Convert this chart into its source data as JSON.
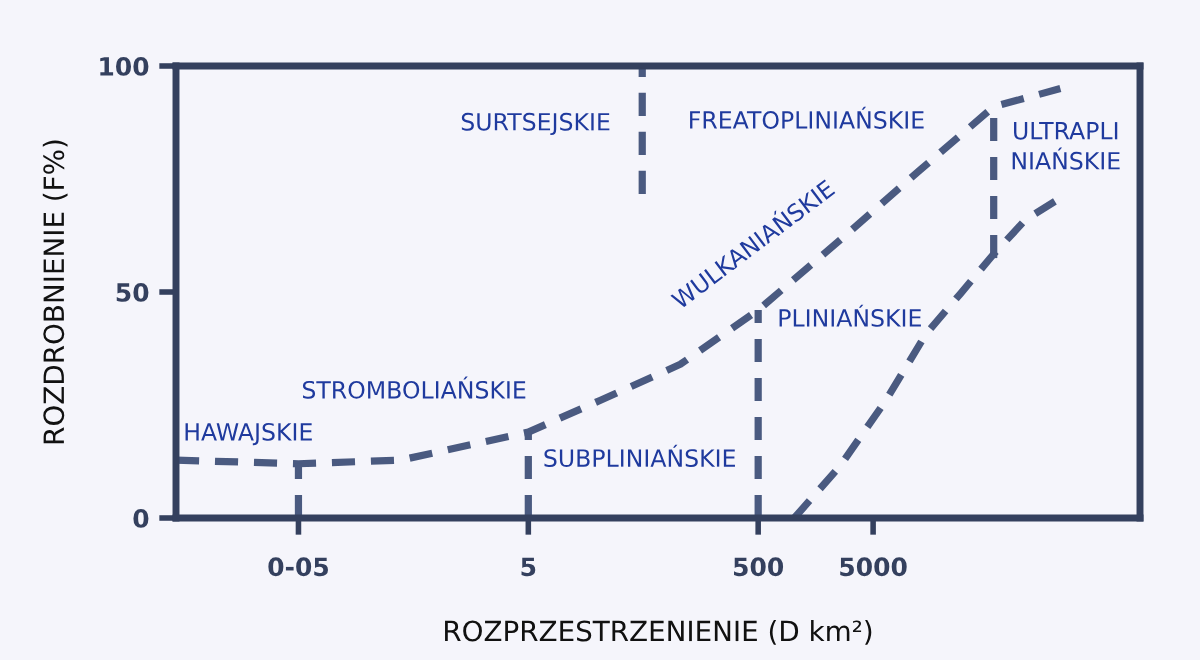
{
  "chart_data": {
    "type": "line",
    "xlabel": "ROZPRZESTRZENIENIE (D km²)",
    "ylabel": "ROZDROBNIENIE (F%)",
    "log": "x",
    "xlim": [
      0.0043,
      1050000
    ],
    "xticks": [
      {
        "value": 0.05,
        "label": "0-05"
      },
      5,
      500,
      5000
    ],
    "ylim": [
      0,
      100
    ],
    "yticks": [
      0,
      50,
      100
    ],
    "grid": false,
    "legend": false,
    "marker": "none",
    "line_style": "dashed",
    "series": [
      {
        "color": "#4a5a80",
        "x": [
          0.0043,
          0.05,
          0.385,
          5,
          21,
          105,
          500,
          2580,
          12800,
          56000,
          213000
        ],
        "values": [
          12.8,
          12,
          12.8,
          19,
          26,
          34,
          46,
          61.5,
          77,
          91,
          95
        ]
      },
      {
        "color": "#4a5a80",
        "x": [
          1030,
          2580,
          6450,
          14400,
          28700,
          56000,
          106000,
          213000
        ],
        "values": [
          0,
          11.5,
          26,
          40.7,
          49.6,
          58.4,
          66,
          70.8
        ]
      },
      {
        "color": "#4a5a80",
        "x": [
          0.05,
          0.05
        ],
        "values": [
          0,
          12
        ]
      },
      {
        "color": "#4a5a80",
        "x": [
          5,
          5
        ],
        "values": [
          0,
          19
        ]
      },
      {
        "color": "#4a5a80",
        "x": [
          500,
          500
        ],
        "values": [
          0,
          46
        ]
      },
      {
        "color": "#4a5a80",
        "x": [
          56000,
          56000
        ],
        "values": [
          57.5,
          92
        ]
      },
      {
        "color": "#4a5a80",
        "x": [
          49,
          49
        ],
        "values": [
          71.7,
          100
        ]
      }
    ],
    "annotations": [
      "HAWAJSKIE",
      "STROMBOLIAŃSKIE",
      "SUBPLINIAŃSKIE",
      "SURTSEJSKIE",
      "FREATOPLINIAŃSKIE",
      "ULTRAPLI\nNIAŃSKIE",
      "PLINIAŃSKIE",
      "WULKANIAŃSKIE"
    ]
  }
}
